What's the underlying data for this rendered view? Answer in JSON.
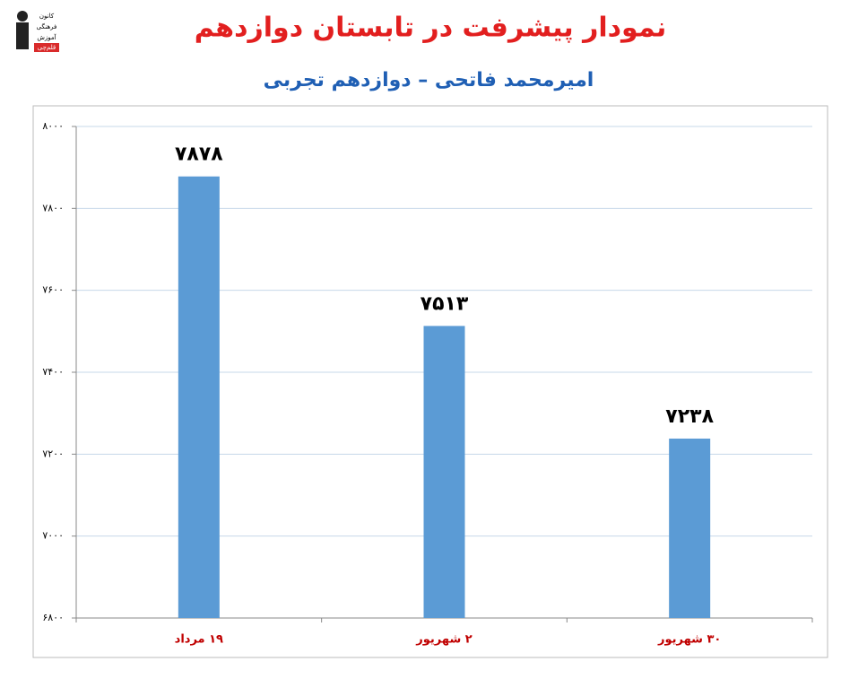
{
  "logo": {
    "lines": [
      "کانون",
      "فرهنگی",
      "آموزش",
      "قلم‌چی"
    ]
  },
  "chart_data": {
    "type": "bar",
    "title": "نمودار پیشرفت در تابستان دوازدهم",
    "subtitle": "امیرمحمد فاتحی – دوازدهم تجربی",
    "categories": [
      "۱۹ مرداد",
      "۲ شهریور",
      "۳۰ شهریور"
    ],
    "values": [
      7878,
      7513,
      7238
    ],
    "value_labels": [
      "۷۸۷۸",
      "۷۵۱۳",
      "۷۲۳۸"
    ],
    "color": "#5b9bd5",
    "ylim": [
      6800,
      8000
    ],
    "yticks": [
      {
        "value": 6800,
        "label": "۶۸۰۰"
      },
      {
        "value": 7000,
        "label": "۷۰۰۰"
      },
      {
        "value": 7200,
        "label": "۷۲۰۰"
      },
      {
        "value": 7400,
        "label": "۷۴۰۰"
      },
      {
        "value": 7600,
        "label": "۷۶۰۰"
      },
      {
        "value": 7800,
        "label": "۷۸۰۰"
      },
      {
        "value": 8000,
        "label": "۸۰۰۰"
      }
    ],
    "grid": true
  }
}
